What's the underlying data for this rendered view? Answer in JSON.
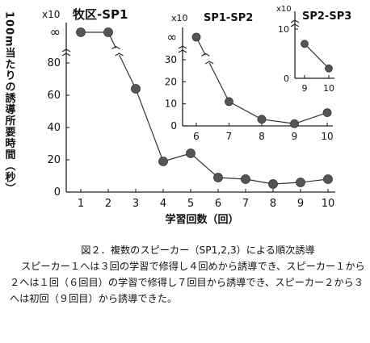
{
  "chart_data": [
    {
      "type": "line",
      "title": "牧区-SP1",
      "multiplier_label": "x10",
      "ylabel": "100m当たりの誘導所要時間（秒）",
      "xlabel": "学習回数（回）",
      "x": [
        1,
        2,
        3,
        4,
        5,
        6,
        7,
        8,
        9,
        10
      ],
      "y_ticks": [
        "0",
        "20",
        "40",
        "60",
        "80",
        "∞"
      ],
      "y_tick_values": [
        0,
        20,
        40,
        60,
        80
      ],
      "x_ticks": [
        "1",
        "2",
        "3",
        "4",
        "5",
        "6",
        "7",
        "8",
        "9",
        "10"
      ],
      "ylim": [
        0,
        80
      ],
      "axis_break": true,
      "infinite_label": "∞",
      "series": [
        {
          "values": [
            "∞",
            "∞",
            64,
            19,
            24,
            9,
            8,
            5,
            6,
            8
          ]
        }
      ]
    },
    {
      "type": "line",
      "title": "SP1-SP2",
      "multiplier_label": "x10",
      "x": [
        6,
        7,
        8,
        9,
        10
      ],
      "x_ticks": [
        "6",
        "7",
        "8",
        "9",
        "10"
      ],
      "y_ticks": [
        "0",
        "10",
        "20",
        "30",
        "∞"
      ],
      "y_tick_values": [
        0,
        10,
        20,
        30
      ],
      "ylim": [
        0,
        30
      ],
      "axis_break": true,
      "series": [
        {
          "values": [
            "∞",
            11,
            3,
            1,
            6
          ]
        }
      ]
    },
    {
      "type": "line",
      "title": "SP2-SP3",
      "multiplier_label": "x10",
      "x": [
        9,
        10
      ],
      "x_ticks": [
        "9",
        "10"
      ],
      "y_ticks": [
        "0",
        "10"
      ],
      "y_tick_values": [
        0,
        10
      ],
      "ylim": [
        0,
        10
      ],
      "axis_break": true,
      "series": [
        {
          "values": [
            7,
            2
          ]
        }
      ]
    }
  ],
  "caption": {
    "title": "図２．複数のスピーカー（SP1,2,3）による順次誘導",
    "body": "スピーカー１へは３回の学習で修得し４回めから誘導でき、スピーカー１から２へは１回（６回目）の学習で修得し７回目から誘導でき、スピーカー２から３へは初回（９回目）から誘導できた。"
  }
}
